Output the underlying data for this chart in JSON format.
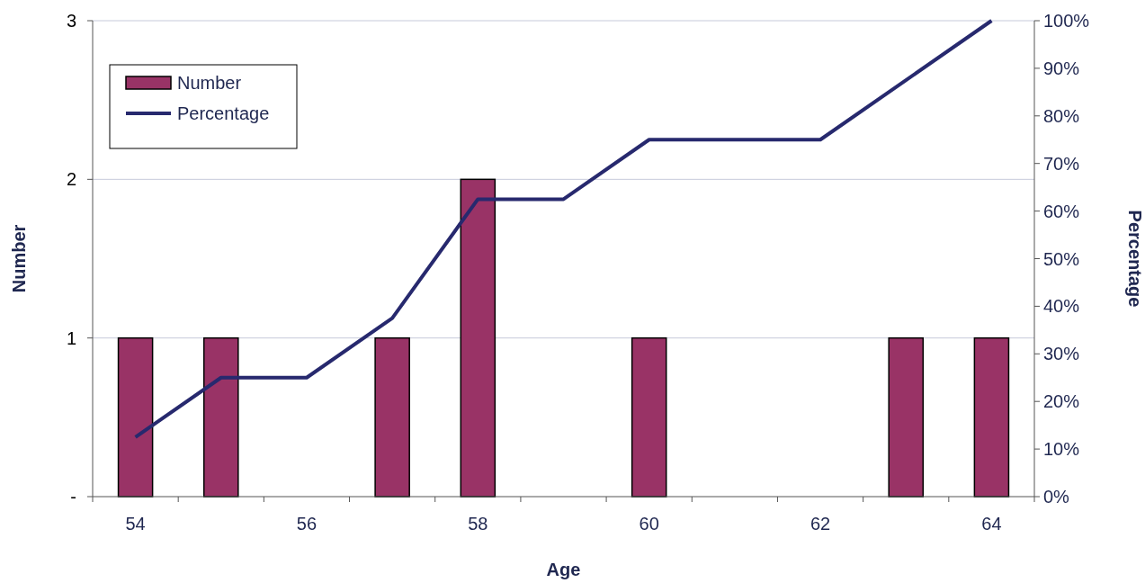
{
  "chart_data": {
    "type": "bar",
    "xlabel": "Age",
    "ylabel": "Number",
    "y2label": "Percentage",
    "categories": [
      "54",
      null,
      "56",
      null,
      "58",
      null,
      "60",
      null,
      "62",
      null,
      "64"
    ],
    "series": [
      {
        "name": "Number",
        "color": "#993366",
        "values": [
          1,
          1,
          0,
          1,
          2,
          0,
          1,
          0,
          0,
          1,
          1
        ]
      },
      {
        "name": "Percentage",
        "type": "line",
        "axis": "y2",
        "color": "#27296e",
        "values": [
          12.5,
          25,
          25,
          37.5,
          62.5,
          62.5,
          75,
          75,
          75,
          87.5,
          100
        ]
      }
    ],
    "ylim": [
      0,
      3
    ],
    "yticks": [
      {
        "value": 0,
        "label": "-"
      },
      1,
      2,
      3
    ],
    "y2lim": [
      0,
      100
    ],
    "y2ticks": [
      {
        "value": 0,
        "label": "0%"
      },
      {
        "value": 10,
        "label": "10%"
      },
      {
        "value": 20,
        "label": "20%"
      },
      {
        "value": 30,
        "label": "30%"
      },
      {
        "value": 40,
        "label": "40%"
      },
      {
        "value": 50,
        "label": "50%"
      },
      {
        "value": 60,
        "label": "60%"
      },
      {
        "value": 70,
        "label": "70%"
      },
      {
        "value": 80,
        "label": "80%"
      },
      {
        "value": 90,
        "label": "90%"
      },
      {
        "value": 100,
        "label": "100%"
      }
    ],
    "grid": "y",
    "legend": "top left",
    "marker": "none",
    "line_style": "solid"
  }
}
